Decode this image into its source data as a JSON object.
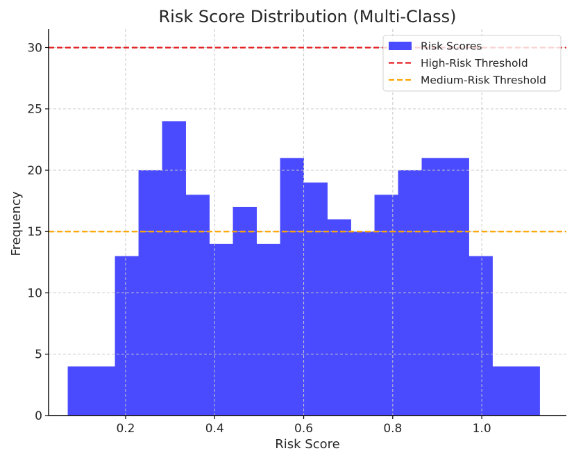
{
  "chart_data": {
    "type": "bar",
    "subtype": "histogram",
    "title": "Risk Score Distribution (Multi-Class)",
    "xlabel": "Risk Score",
    "ylabel": "Frequency",
    "xlim": [
      0.027,
      1.19
    ],
    "ylim": [
      0,
      31.5
    ],
    "xticks": [
      0.2,
      0.4,
      0.6,
      0.8,
      1.0
    ],
    "xtick_labels": [
      "0.2",
      "0.4",
      "0.6",
      "0.8",
      "1.0"
    ],
    "yticks": [
      0,
      5,
      10,
      15,
      20,
      25,
      30
    ],
    "ytick_labels": [
      "0",
      "5",
      "10",
      "15",
      "20",
      "25",
      "30"
    ],
    "grid": true,
    "legend_position": "top-right",
    "bin_edges": [
      0.07,
      0.123,
      0.176,
      0.229,
      0.282,
      0.335,
      0.388,
      0.441,
      0.494,
      0.547,
      0.6,
      0.653,
      0.706,
      0.759,
      0.812,
      0.865,
      0.918,
      0.971,
      1.024,
      1.077,
      1.13
    ],
    "series": [
      {
        "name": "Risk Scores",
        "color": "#4a4aff",
        "values": [
          4,
          4,
          13,
          20,
          24,
          18,
          14,
          17,
          14,
          21,
          19,
          16,
          15,
          18,
          20,
          21,
          21,
          13,
          4,
          4
        ]
      }
    ],
    "reference_lines": [
      {
        "name": "High-Risk Threshold",
        "y": 30,
        "color": "#e31a1c",
        "style": "dashed"
      },
      {
        "name": "Medium-Risk Threshold",
        "y": 15,
        "color": "#ffa500",
        "style": "dashed"
      }
    ]
  }
}
